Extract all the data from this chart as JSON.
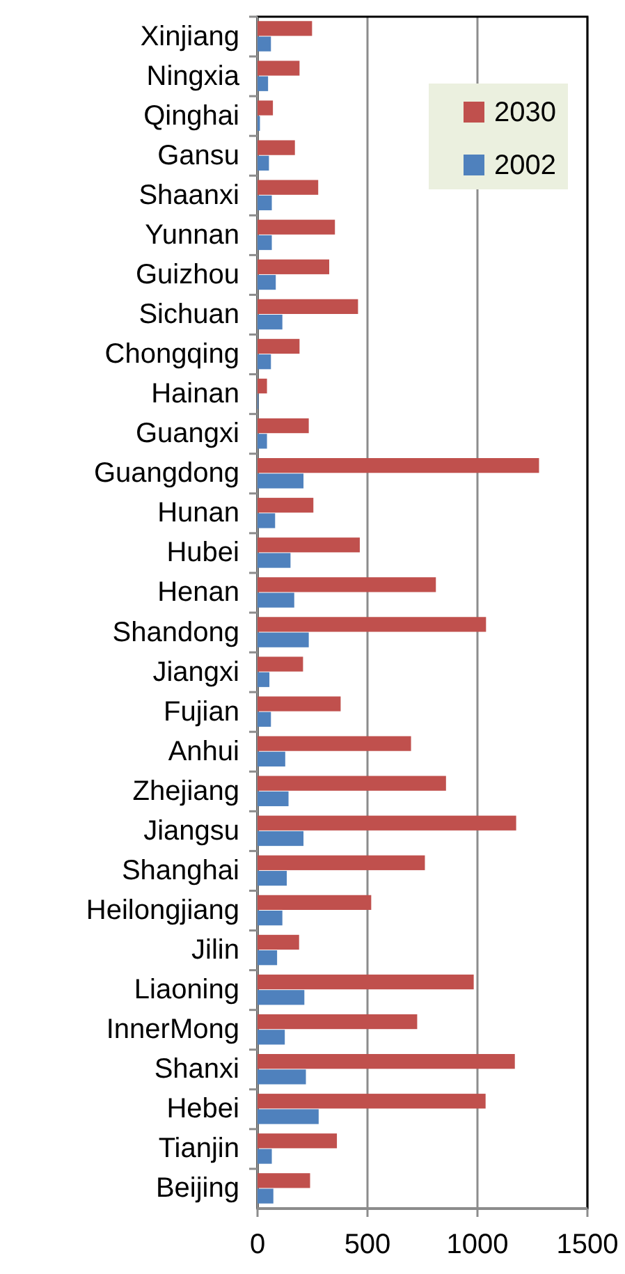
{
  "chart_data": {
    "type": "bar",
    "orientation": "horizontal",
    "categories": [
      "Xinjiang",
      "Ningxia",
      "Qinghai",
      "Gansu",
      "Shaanxi",
      "Yunnan",
      "Guizhou",
      "Sichuan",
      "Chongqing",
      "Hainan",
      "Guangxi",
      "Guangdong",
      "Hunan",
      "Hubei",
      "Henan",
      "Shandong",
      "Jiangxi",
      "Fujian",
      "Anhui",
      "Zhejiang",
      "Jiangsu",
      "Shanghai",
      "Heilongjiang",
      "Jilin",
      "Liaoning",
      "InnerMong",
      "Shanxi",
      "Hebei",
      "Tianjin",
      "Beijing"
    ],
    "series": [
      {
        "name": "2030",
        "color": "#c0504d",
        "values": [
          248,
          191,
          70,
          170,
          276,
          352,
          326,
          457,
          191,
          43,
          233,
          1280,
          254,
          465,
          811,
          1039,
          207,
          378,
          698,
          857,
          1176,
          761,
          517,
          189,
          983,
          726,
          1170,
          1037,
          361,
          239
        ]
      },
      {
        "name": "2002",
        "color": "#4f81bd",
        "values": [
          61,
          48,
          11,
          52,
          65,
          65,
          83,
          113,
          61,
          4,
          43,
          209,
          80,
          150,
          167,
          233,
          54,
          61,
          126,
          141,
          209,
          133,
          113,
          89,
          213,
          124,
          220,
          278,
          65,
          72
        ]
      }
    ],
    "xlim": [
      0,
      1500
    ],
    "xticks": [
      0,
      500,
      1000,
      1500
    ],
    "grid": "x",
    "legend": "top right"
  }
}
